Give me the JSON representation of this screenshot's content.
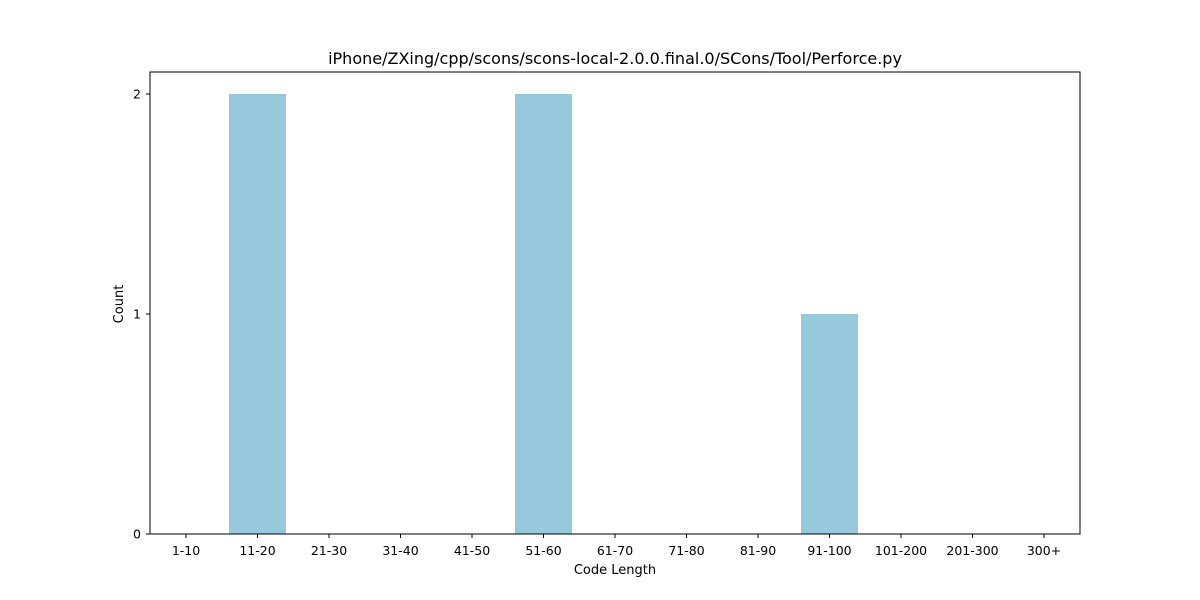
{
  "chart_data": {
    "type": "bar",
    "title": "iPhone/ZXing/cpp/scons/scons-local-2.0.0.final.0/SCons/Tool/Perforce.py",
    "xlabel": "Code Length",
    "ylabel": "Count",
    "categories": [
      "1-10",
      "11-20",
      "21-30",
      "31-40",
      "41-50",
      "51-60",
      "61-70",
      "71-80",
      "81-90",
      "91-100",
      "101-200",
      "201-300",
      "300+"
    ],
    "values": [
      0,
      2,
      0,
      0,
      0,
      2,
      0,
      0,
      0,
      1,
      0,
      0,
      0
    ],
    "yticks": [
      0,
      1,
      2
    ],
    "ylim": [
      0,
      2.1
    ],
    "grid": false,
    "bar_color": "#96c9dc"
  }
}
